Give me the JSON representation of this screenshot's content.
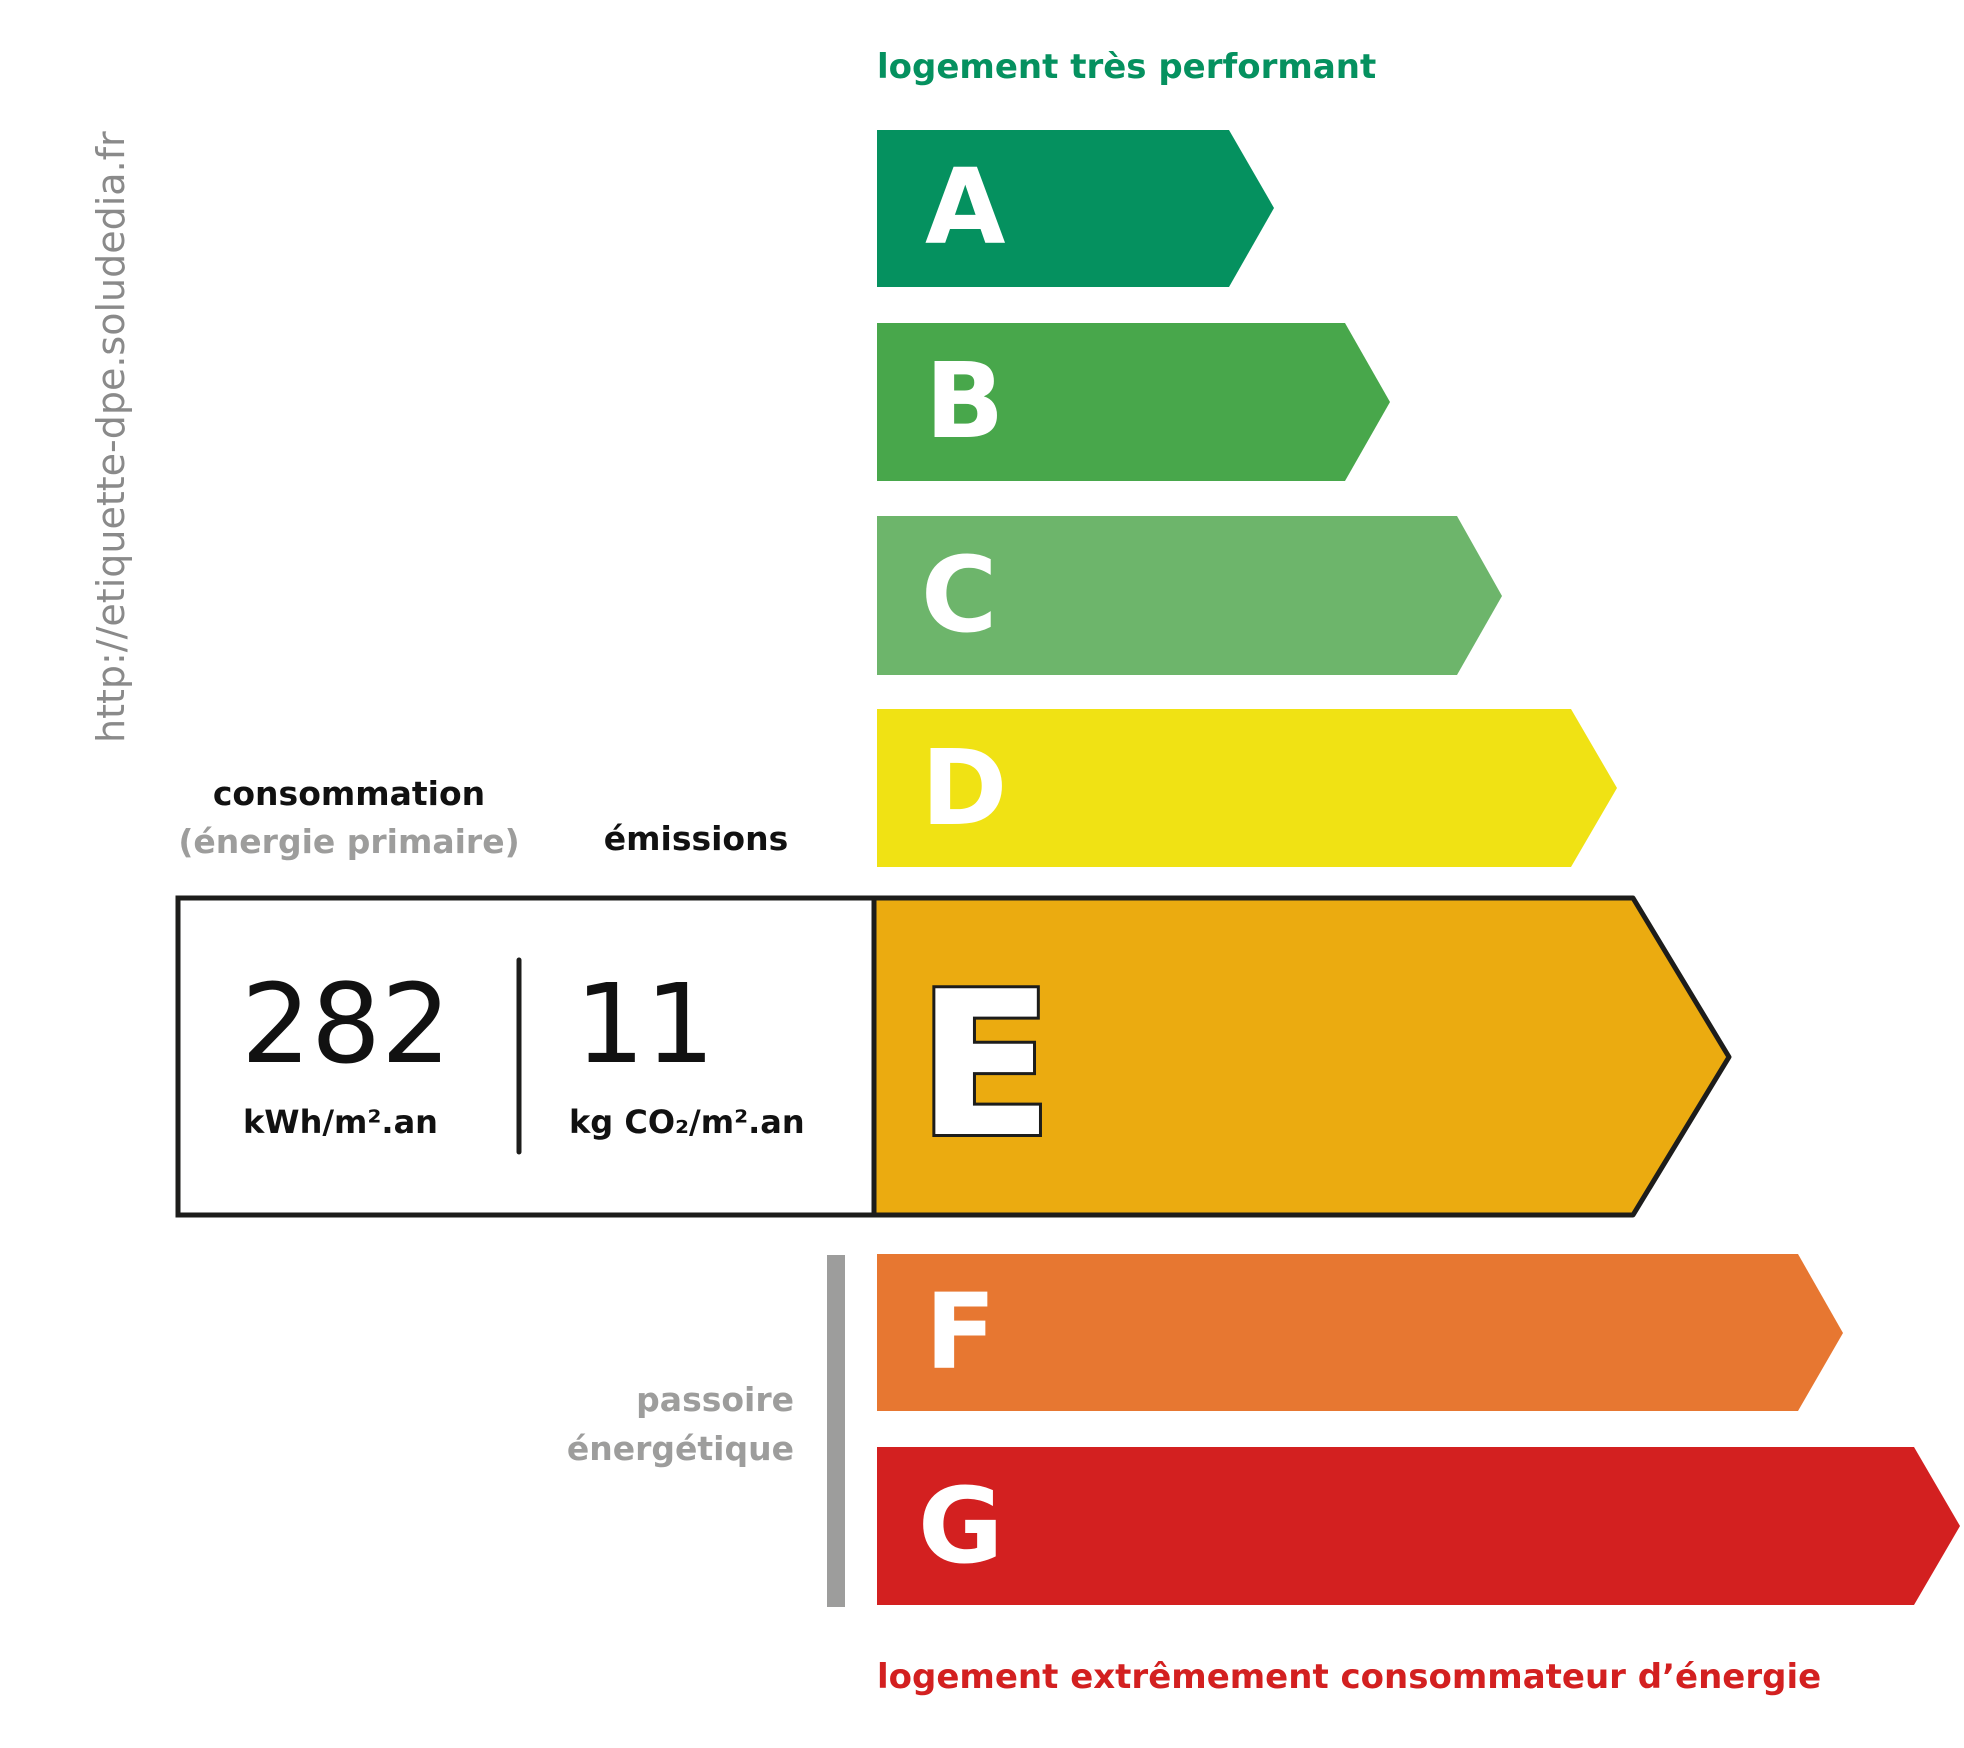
{
  "url_text": "http://etiquette-dpe.soludedia.fr",
  "top_label": "logement très performant",
  "bottom_label": "logement extrêmement consommateur d’énergie",
  "colors": {
    "top_label": "#05915f",
    "bottom_label": "#d32020",
    "passoire": "#9d9d9c"
  },
  "classes": [
    {
      "letter": "A",
      "color": "#05915f"
    },
    {
      "letter": "B",
      "color": "#48a74b"
    },
    {
      "letter": "C",
      "color": "#6db56b"
    },
    {
      "letter": "D",
      "color": "#f0e214"
    },
    {
      "letter": "E",
      "color": "#ebab10"
    },
    {
      "letter": "F",
      "color": "#e77731"
    },
    {
      "letter": "G",
      "color": "#d32020"
    }
  ],
  "current_class": "E",
  "consumption": {
    "heading": "consommation",
    "subheading": "(énergie primaire)",
    "value": "282",
    "unit": "kWh/m².an"
  },
  "emissions": {
    "heading": "émissions",
    "value": "11",
    "unit": "kg CO₂/m².an"
  },
  "passoire": {
    "line1": "passoire",
    "line2": "énergétique"
  }
}
